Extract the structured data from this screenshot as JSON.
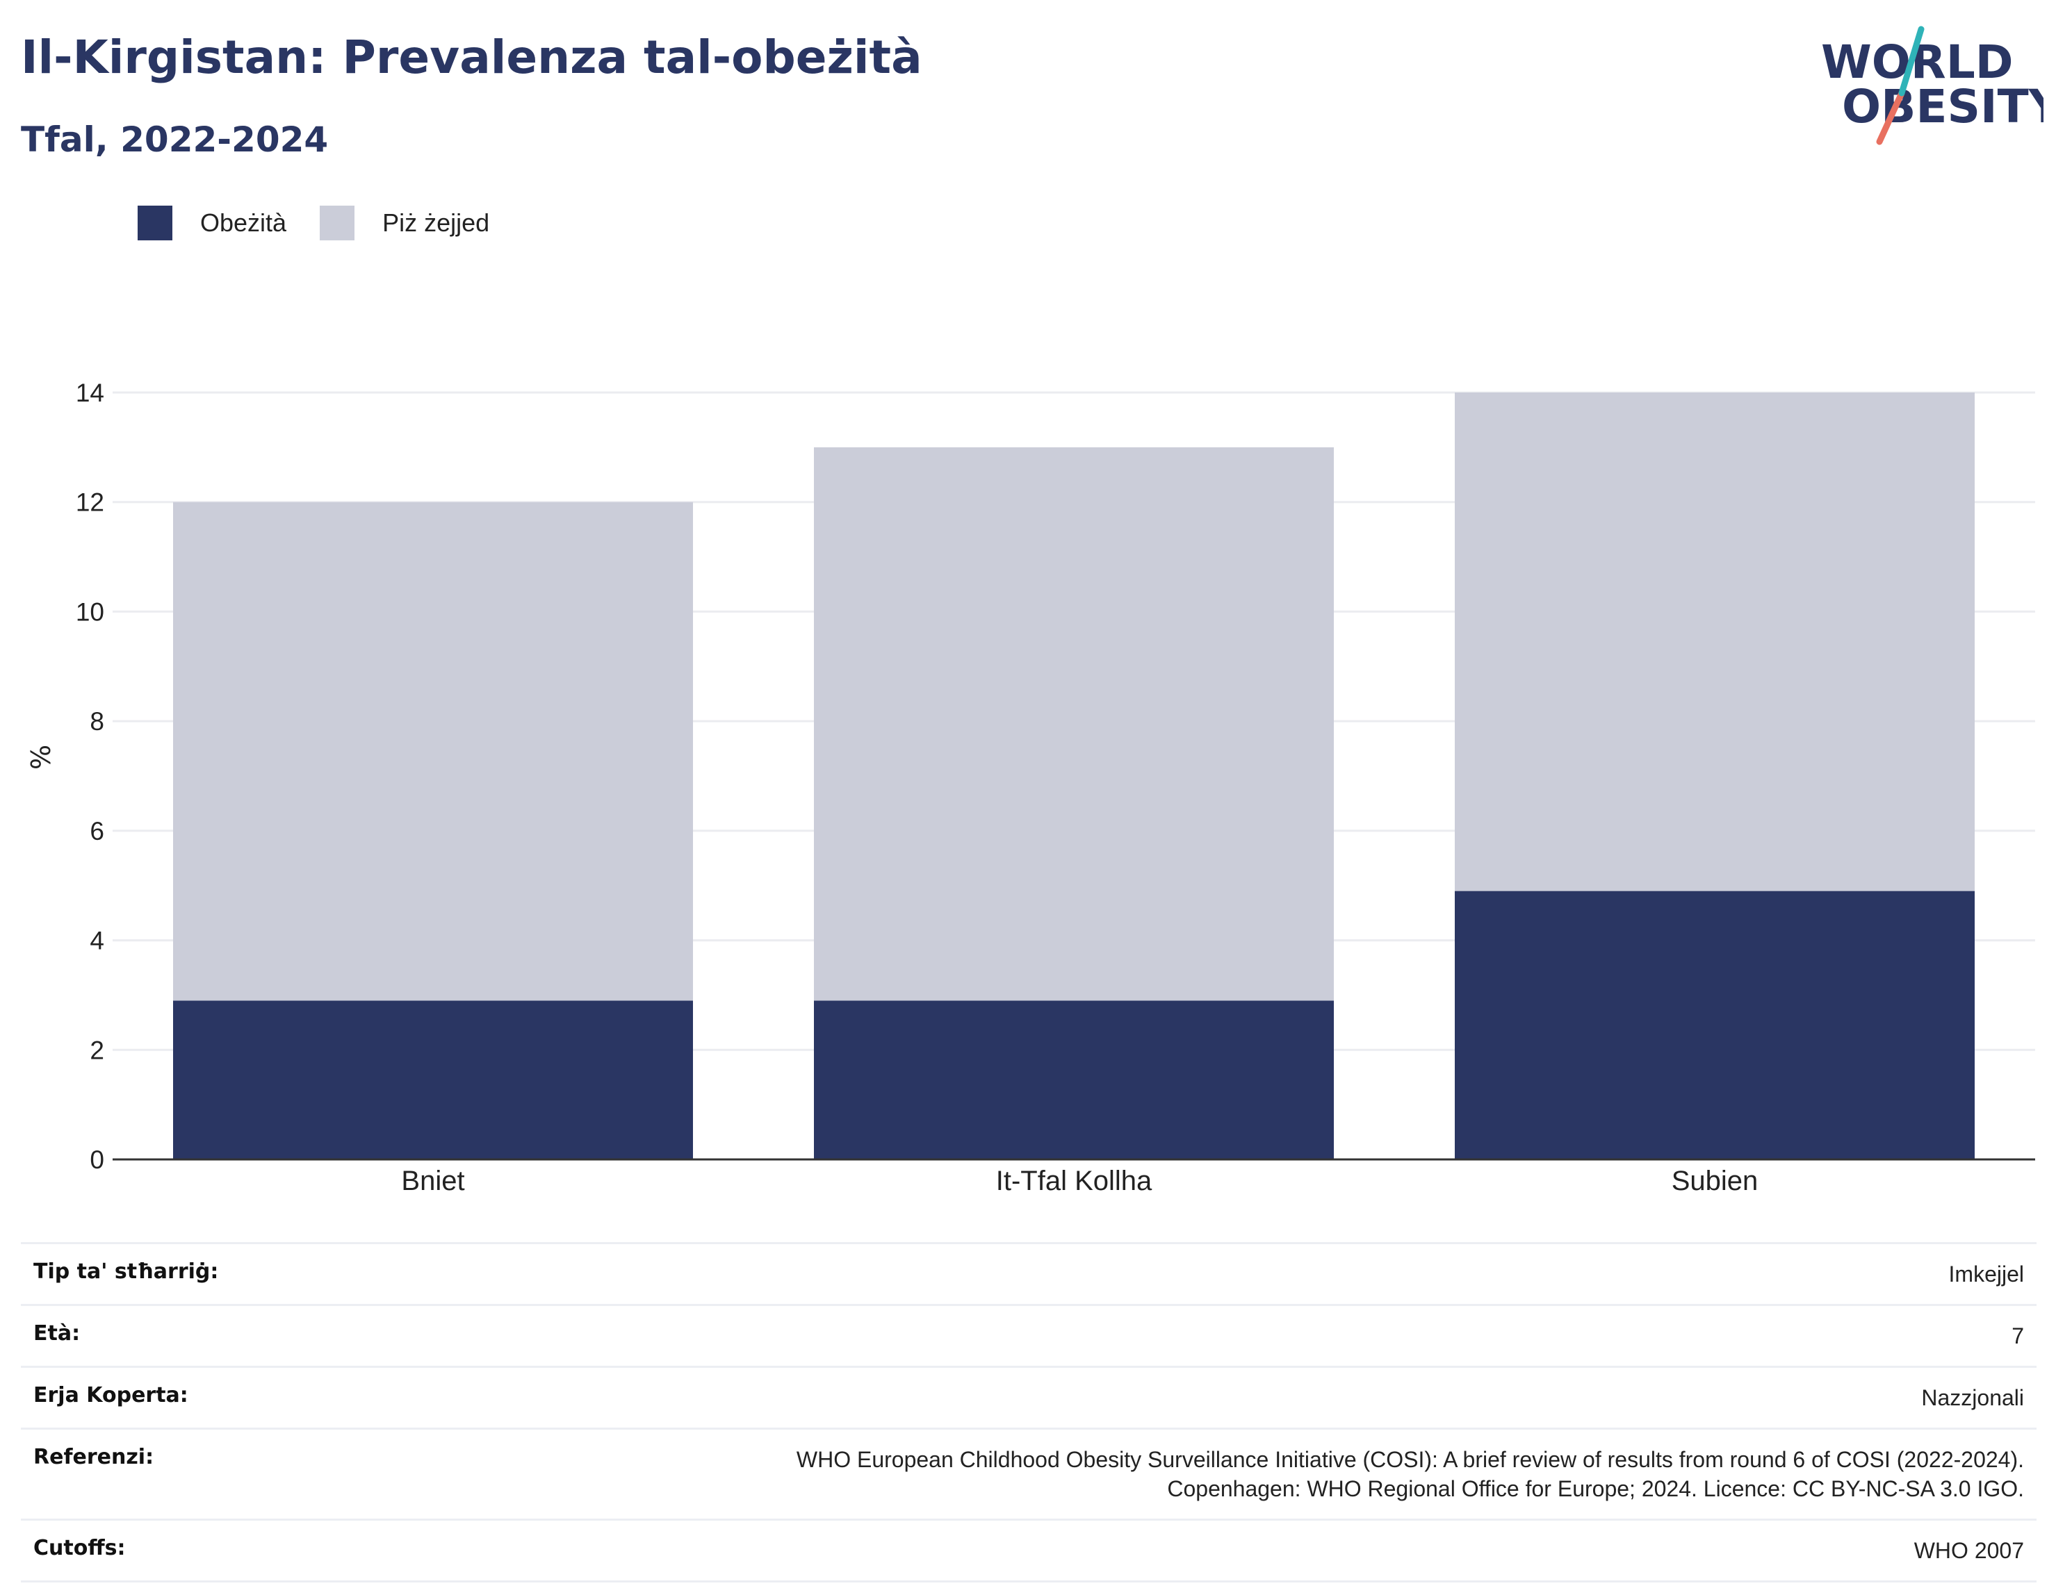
{
  "header": {
    "title": "Il-Kirgistan: Prevalenza tal-obeżità",
    "subtitle": "Tfal, 2022-2024"
  },
  "logo": {
    "line1": "WORLD",
    "line2": "OBESITY"
  },
  "legend": [
    {
      "label": "Obeżità",
      "color": "#2a3663"
    },
    {
      "label": "Piż żejjed",
      "color": "#cbcdd9"
    }
  ],
  "chart_data": {
    "type": "bar",
    "stacked": true,
    "categories": [
      "Bniet",
      "It-Tfal Kollha",
      "Subien"
    ],
    "series": [
      {
        "name": "Obeżità",
        "values": [
          2.9,
          2.9,
          4.9
        ],
        "color": "#2a3663"
      },
      {
        "name": "Piż żejjed",
        "values": [
          9.1,
          10.1,
          9.1
        ],
        "color": "#cbcdd9"
      }
    ],
    "ylabel": "%",
    "ylim": [
      0,
      14
    ],
    "yticks": [
      "0",
      "2",
      "4",
      "6",
      "8",
      "10",
      "12",
      "14"
    ],
    "grid": true,
    "legend_position": "top-left"
  },
  "info": {
    "rows": [
      {
        "label": "Tip ta' stħarriġ:",
        "value": [
          "Imkejjel"
        ]
      },
      {
        "label": "Età:",
        "value": [
          "7"
        ]
      },
      {
        "label": "Erja Koperta:",
        "value": [
          "Nazzjonali"
        ]
      },
      {
        "label": "Referenzi:",
        "value": [
          "WHO European Childhood Obesity Surveillance Initiative (COSI): A brief review of results from round 6 of COSI (2022-2024).",
          "Copenhagen: WHO Regional Office for Europe; 2024. Licence: CC BY-NC-SA 3.0 IGO."
        ]
      },
      {
        "label": "Cutoffs:",
        "value": [
          "WHO 2007"
        ]
      }
    ]
  }
}
